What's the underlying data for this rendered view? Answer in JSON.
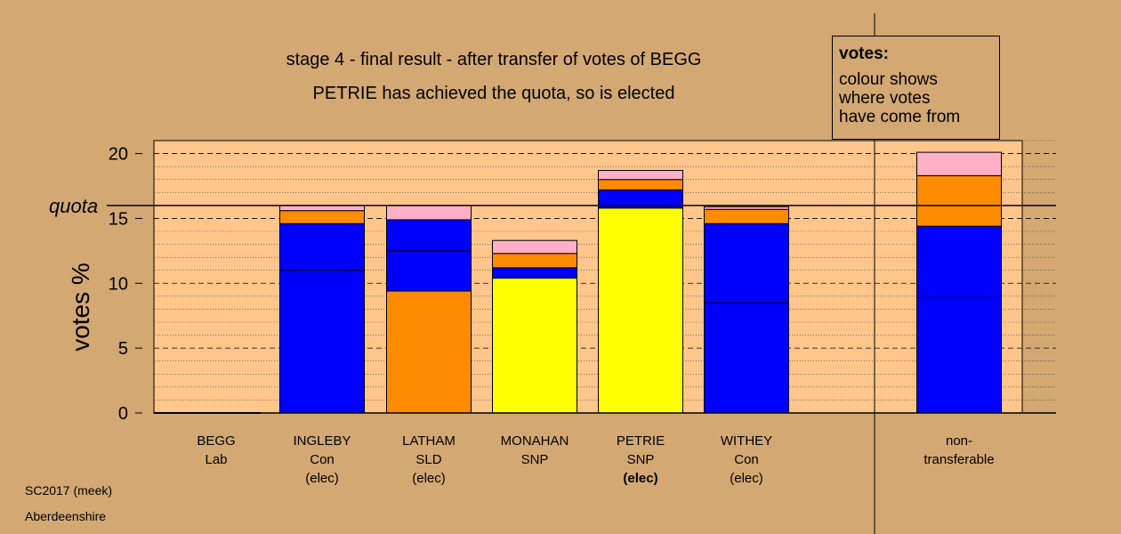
{
  "title": "stage 4 - final result - after transfer of votes of BEGG",
  "subtitle": "PETRIE has achieved the quota, so is elected",
  "footer": {
    "line1": "SC2017 (meek)",
    "line2": "Aberdeenshire"
  },
  "legend": {
    "heading": "votes:",
    "lines": [
      "colour shows",
      "where votes",
      "have come from"
    ]
  },
  "colors": {
    "background": "#d3a873",
    "plot_bg": "#ffc68c",
    "Con": "#0000ff",
    "SLD": "#ff8c00",
    "SNP": "#ffff00",
    "Lab": "#ffb0c8",
    "quota_line": "#000000"
  },
  "chart_data": {
    "type": "bar",
    "stacked": true,
    "ylabel": "votes %",
    "ylim": [
      0,
      21
    ],
    "yticks": [
      0,
      5,
      10,
      15,
      20
    ],
    "quota": {
      "value": 16.0,
      "label": "quota"
    },
    "categories": [
      {
        "name": "BEGG",
        "party": "Lab",
        "status": ""
      },
      {
        "name": "INGLEBY",
        "party": "Con",
        "status": "(elec)"
      },
      {
        "name": "LATHAM",
        "party": "SLD",
        "status": "(elec)"
      },
      {
        "name": "MONAHAN",
        "party": "SNP",
        "status": ""
      },
      {
        "name": "PETRIE",
        "party": "SNP",
        "status": "(elec)",
        "bold_status": true
      },
      {
        "name": "WITHEY",
        "party": "Con",
        "status": "(elec)"
      },
      {
        "name": "non-",
        "party": "transferable",
        "status": ""
      }
    ],
    "stacks": [
      [],
      [
        {
          "source": "Con",
          "value": 11.0
        },
        {
          "source": "Con",
          "value": 3.6
        },
        {
          "source": "SLD",
          "value": 1.0
        },
        {
          "source": "Lab",
          "value": 0.4
        }
      ],
      [
        {
          "source": "SLD",
          "value": 9.4
        },
        {
          "source": "Con",
          "value": 3.1
        },
        {
          "source": "Con",
          "value": 2.4
        },
        {
          "source": "Lab",
          "value": 1.1
        }
      ],
      [
        {
          "source": "SNP",
          "value": 10.4
        },
        {
          "source": "Con",
          "value": 0.8
        },
        {
          "source": "SLD",
          "value": 1.1
        },
        {
          "source": "Lab",
          "value": 1.0
        }
      ],
      [
        {
          "source": "SNP",
          "value": 15.8
        },
        {
          "source": "Con",
          "value": 1.4
        },
        {
          "source": "SLD",
          "value": 0.8
        },
        {
          "source": "Lab",
          "value": 0.7
        }
      ],
      [
        {
          "source": "Con",
          "value": 8.5
        },
        {
          "source": "Con",
          "value": 6.1
        },
        {
          "source": "SLD",
          "value": 1.1
        },
        {
          "source": "Lab",
          "value": 0.2
        }
      ],
      [
        {
          "source": "Con",
          "value": 8.9
        },
        {
          "source": "Con",
          "value": 5.5
        },
        {
          "source": "SLD",
          "value": 3.9
        },
        {
          "source": "Lab",
          "value": 1.8
        }
      ]
    ]
  }
}
